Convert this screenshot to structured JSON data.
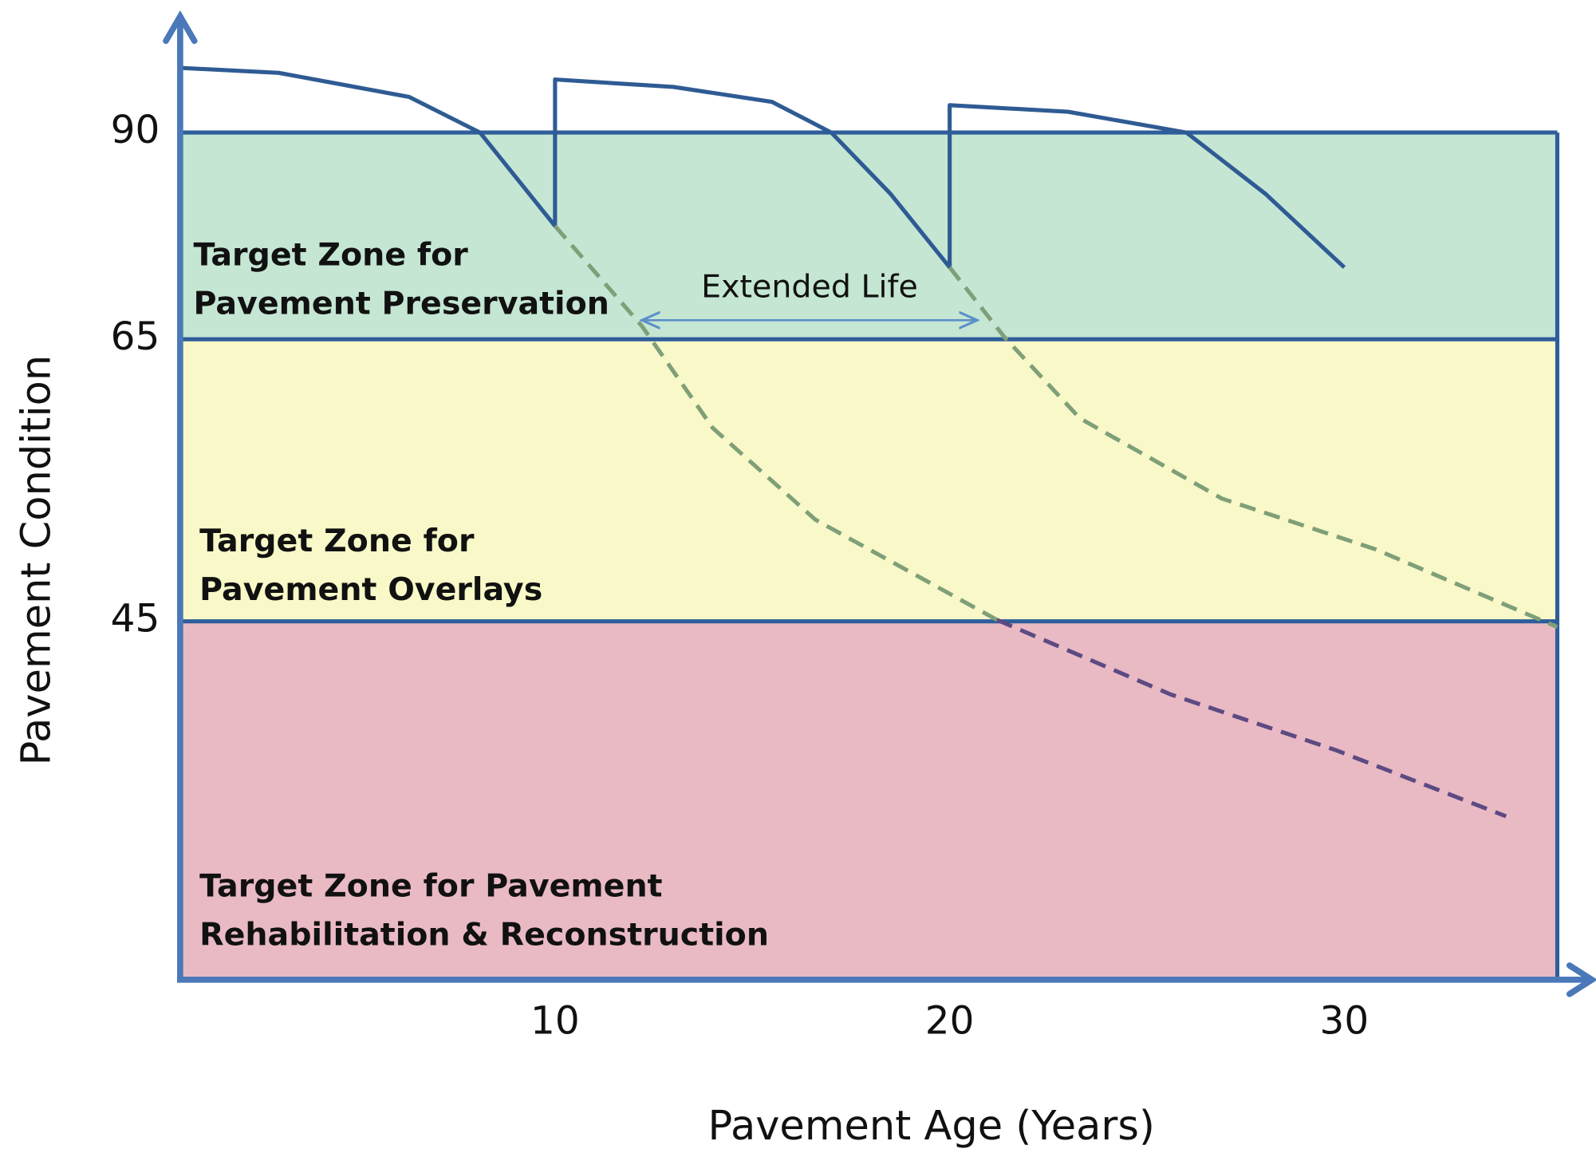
{
  "chart_data": {
    "type": "line",
    "x_label": "Pavement Age (Years)",
    "y_label": "Pavement Condition",
    "xlim": [
      0.5,
      35.4
    ],
    "xticks": [
      10,
      20,
      30
    ],
    "ylim": [
      20,
      104
    ],
    "yticks": [
      45,
      65,
      90
    ],
    "zones": [
      {
        "lines": [
          "Target Zone for",
          "Pavement Preservation"
        ],
        "from": 65,
        "to": 90,
        "color": "#c4e6d3"
      },
      {
        "lines": [
          "Target Zone for",
          "Pavement Overlays"
        ],
        "from": 45,
        "to": 65,
        "color": "#f8f8c8"
      },
      {
        "lines": [
          "Target Zone for Pavement",
          "Rehabilitation & Reconstruction"
        ],
        "from": 20,
        "to": 45,
        "color": "#e9bac4"
      }
    ],
    "series": [
      {
        "color": "#2f5b94",
        "dash": false,
        "x": [
          0.5,
          3,
          6.3,
          8.1,
          10,
          10,
          13,
          15.5,
          17,
          18.5,
          20,
          20,
          23,
          26,
          28,
          30
        ],
        "values": [
          97.8,
          97.2,
          94.3,
          90,
          78.7,
          96.4,
          95.5,
          93.7,
          90,
          82.6,
          73.7,
          93.3,
          92.5,
          90,
          82.6,
          73.7
        ]
      },
      {
        "color": "#7f9f78",
        "dash": true,
        "x": [
          10,
          12.2,
          14,
          16.6,
          21.2
        ],
        "values": [
          78.7,
          66.6,
          58.7,
          52.2,
          45.1
        ]
      },
      {
        "color": "#5d4a82",
        "dash": true,
        "x": [
          21.2,
          25.6,
          29.8,
          34.1
        ],
        "values": [
          45.1,
          39.9,
          36,
          31.4
        ]
      },
      {
        "color": "#7f9f78",
        "dash": true,
        "x": [
          20,
          21.4,
          23.3,
          26.9,
          30.8,
          35.4
        ],
        "values": [
          73.7,
          65.2,
          59.4,
          53.7,
          50.1,
          44.6
        ]
      }
    ],
    "annotations": [
      {
        "text": "Extended Life",
        "x": [
          12.2,
          20.7
        ],
        "y": 67.3,
        "color": "#5b8fc9"
      }
    ]
  }
}
